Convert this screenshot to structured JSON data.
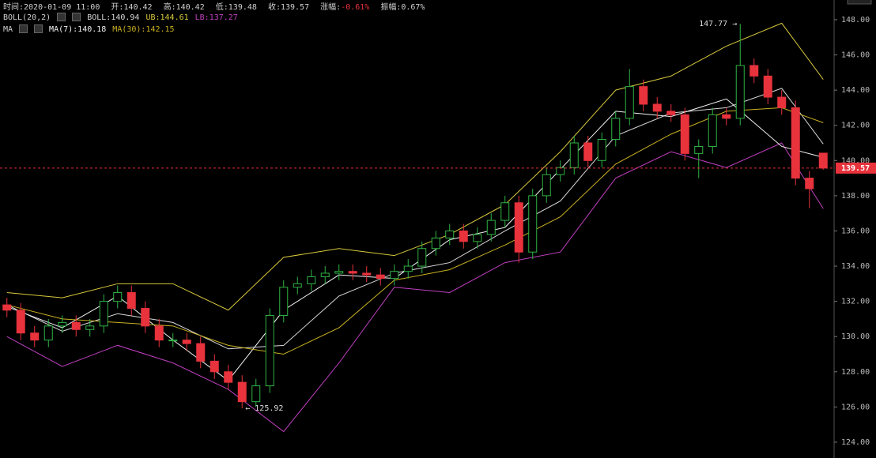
{
  "header": {
    "time": "时间:2020-01-09 11:00",
    "open": "开:140.42",
    "high": "高:140.42",
    "low": "低:139.48",
    "close": "收:139.57",
    "change_label": "涨幅:",
    "change": "-0.61%",
    "amplitude": "振幅:0.67%"
  },
  "chart_data": {
    "type": "candlestick",
    "open": [
      131.8,
      131.5,
      130.2,
      129.8,
      130.6,
      130.8,
      130.4,
      130.6,
      132.0,
      132.5,
      131.6,
      130.6,
      129.8,
      129.8,
      129.6,
      128.6,
      128.0,
      127.4,
      126.3,
      127.2,
      131.2,
      132.8,
      133.0,
      133.4,
      133.6,
      133.7,
      133.6,
      133.5,
      133.3,
      133.7,
      134.0,
      135.0,
      135.6,
      136.0,
      135.4,
      135.8,
      136.6,
      137.6,
      134.8,
      138.0,
      139.2,
      139.6,
      141.0,
      140.0,
      141.2,
      142.4,
      144.2,
      143.2,
      142.8,
      142.6,
      140.4,
      140.8,
      142.6,
      142.4,
      145.4,
      144.8,
      143.6,
      143.0,
      139.0,
      140.42
    ],
    "high": [
      132.2,
      131.9,
      130.6,
      131.0,
      131.2,
      131.2,
      131.0,
      132.4,
      132.9,
      132.9,
      132.0,
      131.0,
      130.2,
      130.2,
      130.0,
      129.0,
      128.4,
      127.8,
      127.6,
      131.6,
      133.2,
      133.4,
      133.8,
      134.0,
      134.1,
      134.1,
      134.0,
      133.9,
      134.1,
      134.4,
      135.4,
      136.0,
      136.4,
      136.4,
      136.2,
      137.0,
      138.0,
      138.0,
      138.4,
      139.6,
      140.0,
      141.4,
      141.4,
      141.6,
      142.8,
      145.2,
      144.6,
      143.6,
      143.2,
      143.0,
      141.2,
      143.0,
      143.0,
      147.77,
      145.8,
      145.2,
      144.0,
      143.4,
      139.4,
      140.42
    ],
    "low": [
      131.1,
      129.8,
      129.4,
      129.4,
      130.2,
      130.0,
      130.0,
      130.2,
      131.6,
      131.2,
      130.2,
      129.4,
      129.4,
      129.2,
      128.2,
      127.6,
      127.0,
      125.92,
      126.0,
      126.8,
      130.8,
      132.4,
      132.6,
      133.0,
      133.2,
      133.2,
      133.1,
      132.9,
      132.9,
      133.3,
      133.6,
      134.6,
      135.2,
      135.0,
      135.0,
      135.4,
      136.2,
      134.2,
      134.4,
      137.6,
      138.8,
      139.2,
      139.6,
      139.6,
      140.8,
      142.0,
      142.8,
      142.4,
      142.2,
      140.0,
      139.0,
      140.4,
      142.0,
      142.0,
      144.4,
      143.2,
      142.6,
      138.6,
      137.3,
      139.48
    ],
    "close": [
      131.5,
      130.2,
      129.8,
      130.6,
      130.8,
      130.4,
      130.6,
      132.0,
      132.5,
      131.6,
      130.6,
      129.8,
      129.8,
      129.6,
      128.6,
      128.0,
      127.4,
      126.3,
      127.2,
      131.2,
      132.8,
      133.0,
      133.4,
      133.6,
      133.7,
      133.6,
      133.5,
      133.3,
      133.7,
      134.0,
      135.0,
      135.6,
      136.0,
      135.4,
      135.8,
      136.6,
      137.6,
      134.8,
      138.0,
      139.2,
      139.6,
      141.0,
      140.0,
      141.2,
      142.4,
      144.2,
      143.2,
      142.8,
      142.6,
      140.4,
      140.8,
      142.6,
      142.4,
      145.4,
      144.8,
      143.6,
      143.0,
      139.0,
      138.4,
      139.57
    ],
    "up_color": "#2fb344",
    "down_color": "#e8323c",
    "ylim": [
      123.1,
      149.12
    ],
    "yticks": [
      {
        "value": 124,
        "label": "124.00"
      },
      {
        "value": 126,
        "label": "126.00"
      },
      {
        "value": 128,
        "label": "128.00"
      },
      {
        "value": 130,
        "label": "130.00"
      },
      {
        "value": 132,
        "label": "132.00"
      },
      {
        "value": 134,
        "label": "134.00"
      },
      {
        "value": 136,
        "label": "136.00"
      },
      {
        "value": 138,
        "label": "138.00"
      },
      {
        "value": 140,
        "label": "140.00"
      },
      {
        "value": 142,
        "label": "142.00"
      },
      {
        "value": 144,
        "label": "144.00"
      },
      {
        "value": 146,
        "label": "146.00"
      },
      {
        "value": 148,
        "label": "148.00"
      }
    ],
    "overlay_x": [
      0,
      4,
      8,
      12,
      16,
      20,
      24,
      28,
      32,
      36,
      40,
      44,
      48,
      52,
      56,
      59
    ],
    "overlays": [
      {
        "label": "BOLL(20,2)",
        "series": [
          {
            "name": "BOLL:140.94",
            "color": "#d8d8d8",
            "values": [
              131.8,
              130.3,
              131.3,
              130.8,
              129.3,
              129.5,
              132.3,
              133.6,
              134.2,
              136.0,
              137.7,
              141.4,
              142.7,
              143.0,
              144.1,
              140.94
            ]
          },
          {
            "name": "UB:144.61",
            "color": "#d8c83c",
            "values": [
              132.5,
              132.2,
              133.0,
              133.0,
              131.5,
              134.5,
              135.0,
              134.6,
              135.8,
              137.5,
              140.5,
              144.0,
              144.8,
              146.5,
              147.8,
              144.61
            ]
          },
          {
            "name": "LB:137.27",
            "color": "#c040c0",
            "values": [
              130.0,
              128.3,
              129.5,
              128.5,
              127.0,
              124.6,
              128.5,
              132.8,
              132.5,
              134.2,
              134.8,
              139.0,
              140.5,
              139.6,
              141.0,
              137.27
            ]
          }
        ]
      },
      {
        "label": "MA",
        "series": [
          {
            "name": "MA(7):140.18",
            "color": "#f4f4f4",
            "values": [
              131.7,
              130.5,
              132.3,
              129.8,
              127.5,
              131.5,
              133.5,
              133.3,
              135.5,
              136.2,
              139.5,
              142.8,
              142.5,
              143.5,
              140.8,
              140.18
            ]
          },
          {
            "name": "MA(30):142.15",
            "color": "#c8b020",
            "values": [
              131.8,
              131.0,
              130.8,
              130.6,
              129.5,
              129.0,
              130.5,
              133.2,
              133.8,
              135.2,
              136.8,
              139.8,
              141.5,
              142.8,
              143.0,
              142.15
            ]
          }
        ]
      }
    ],
    "annotations": [
      "147.77 →",
      "← 125.92"
    ]
  }
}
